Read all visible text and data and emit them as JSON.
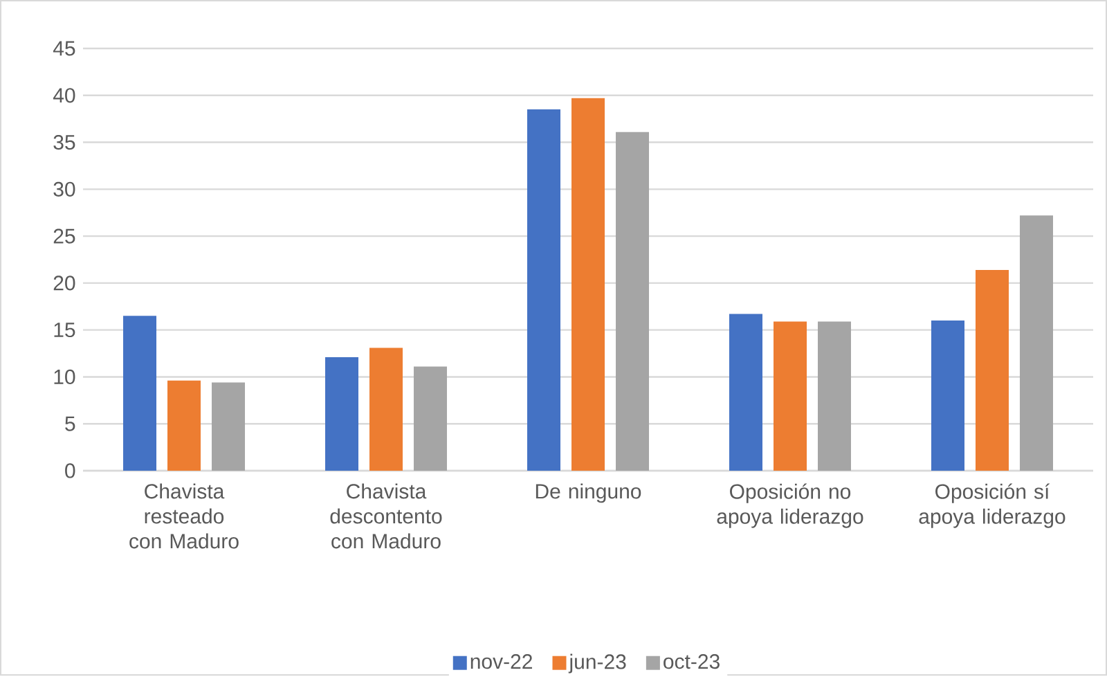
{
  "chart_data": {
    "type": "bar",
    "categories": [
      "Chavista resteado con Maduro",
      "Chavista descontento con Maduro",
      "De ninguno",
      "Oposición no apoya liderazgo",
      "Oposición sí apoya liderazgo"
    ],
    "series": [
      {
        "name": "nov-22",
        "color": "#4472c4",
        "values": [
          16.5,
          12.1,
          38.5,
          16.7,
          16.0
        ]
      },
      {
        "name": "jun-23",
        "color": "#ed7d31",
        "values": [
          9.6,
          13.1,
          39.7,
          15.9,
          21.4
        ]
      },
      {
        "name": "oct-23",
        "color": "#a5a5a5",
        "values": [
          9.4,
          11.1,
          36.1,
          15.9,
          27.2
        ]
      }
    ],
    "ylim": [
      0,
      45
    ],
    "yticks": [
      0,
      5,
      10,
      15,
      20,
      25,
      30,
      35,
      40,
      45
    ],
    "grid": "y",
    "legend": "bottom"
  }
}
